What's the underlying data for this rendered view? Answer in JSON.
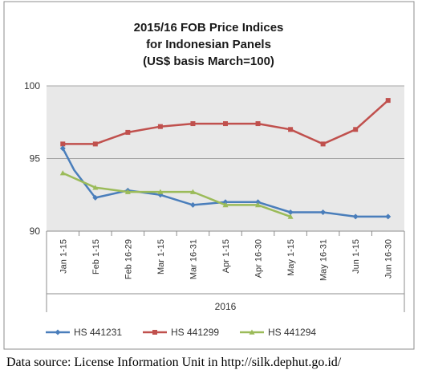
{
  "chart_data": {
    "type": "line",
    "title_lines": [
      "2015/16 FOB Price Indices",
      "for Indonesian Panels",
      "(US$ basis March=100)"
    ],
    "xlabel": "2016",
    "categories": [
      "Jan 1-15",
      "Feb 1-15",
      "Feb 16-29",
      "Mar 1-15",
      "Mar 16-31",
      "Apr 1-15",
      "Apr 16-30",
      "May 1-15",
      "May 16-31",
      "Jun 1-15",
      "Jun 16-30"
    ],
    "yticks": [
      "90",
      "95",
      "100"
    ],
    "ylim": [
      90,
      100
    ],
    "grid": true,
    "legend_position": "bottom",
    "series": [
      {
        "name": "HS 441231",
        "color": "#4A7EBB",
        "marker": "diamond",
        "values": [
          95.7,
          92.3,
          92.8,
          92.5,
          91.8,
          92.0,
          92.0,
          91.3,
          91.3,
          91.0,
          91.0
        ],
        "curve_x": [
          0,
          0.35,
          1
        ],
        "curve_y": [
          95.7,
          94.2,
          92.3
        ]
      },
      {
        "name": "HS 441299",
        "color": "#C0504D",
        "marker": "square",
        "values": [
          96.0,
          96.0,
          96.8,
          97.2,
          97.4,
          97.4,
          97.4,
          97.0,
          96.0,
          97.0,
          99.0
        ]
      },
      {
        "name": "HS 441294",
        "color": "#9BBB59",
        "marker": "triangle",
        "values": [
          94.0,
          93.0,
          92.7,
          92.7,
          92.7,
          91.8,
          91.8,
          91.0,
          null,
          null,
          null
        ]
      }
    ]
  },
  "source_text": "Data source: License Information Unit in http://silk.dephut.go.id/"
}
